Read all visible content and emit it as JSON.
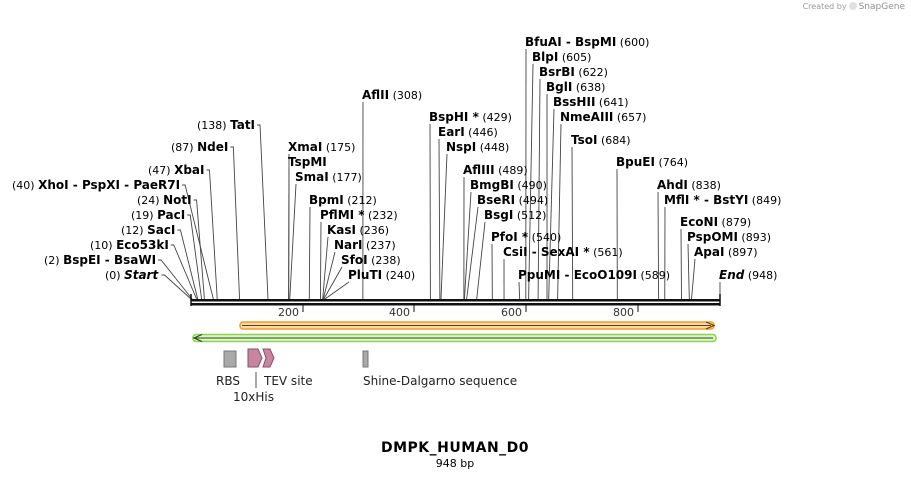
{
  "app": {
    "credit_prefix": "Created by",
    "credit_brand": "SnapGene"
  },
  "sequence": {
    "name": "DMPK_HUMAN_D0",
    "length_label": "948 bp",
    "length": 948
  },
  "colors": {
    "backbone": "#111111",
    "orange_feature": "#f0a020",
    "green_feature": "#8fd14f",
    "rbs": "#a9a9a9",
    "his": "#c7869f",
    "shine": "#a9a9a9"
  },
  "ticks": [
    "200",
    "400",
    "600",
    "800"
  ],
  "enzymes": [
    {
      "text": "(0)",
      "names": [
        "Start"
      ],
      "pos": "",
      "site": 0
    },
    {
      "text": "(2)",
      "names": [
        "BspEI",
        "BsaWI"
      ],
      "pos": "",
      "site": 2
    },
    {
      "text": "(10)",
      "names": [
        "Eco53kI"
      ],
      "pos": "",
      "site": 10
    },
    {
      "text": "(12)",
      "names": [
        "SacI"
      ],
      "pos": "",
      "site": 12
    },
    {
      "text": "(19)",
      "names": [
        "PacI"
      ],
      "pos": "",
      "site": 19
    },
    {
      "text": "(24)",
      "names": [
        "NotI"
      ],
      "pos": "",
      "site": 24
    },
    {
      "text": "(40)",
      "names": [
        "XhoI",
        "PspXI",
        "PaeR7I"
      ],
      "pos": "",
      "site": 40
    },
    {
      "text": "(47)",
      "names": [
        "XbaI"
      ],
      "pos": "",
      "site": 47
    },
    {
      "text": "(87)",
      "names": [
        "NdeI"
      ],
      "pos": "",
      "site": 87
    },
    {
      "text": "(138)",
      "names": [
        "TatI"
      ],
      "pos": "",
      "site": 138
    },
    {
      "text": "",
      "names": [
        "XmaI"
      ],
      "pos": "(175)",
      "site": 175
    },
    {
      "text": "",
      "names": [
        "TspMI"
      ],
      "pos": "",
      "site": 175
    },
    {
      "text": "",
      "names": [
        "SmaI"
      ],
      "pos": "(177)",
      "site": 177
    },
    {
      "text": "",
      "names": [
        "BpmI"
      ],
      "pos": "(212)",
      "site": 212
    },
    {
      "text": "",
      "names": [
        "PflMI *"
      ],
      "pos": "(232)",
      "site": 232
    },
    {
      "text": "",
      "names": [
        "KasI"
      ],
      "pos": "(236)",
      "site": 236
    },
    {
      "text": "",
      "names": [
        "NarI"
      ],
      "pos": "(237)",
      "site": 237
    },
    {
      "text": "",
      "names": [
        "SfoI"
      ],
      "pos": "(238)",
      "site": 238
    },
    {
      "text": "",
      "names": [
        "PluTI"
      ],
      "pos": "(240)",
      "site": 240
    },
    {
      "text": "",
      "names": [
        "AflII"
      ],
      "pos": "(308)",
      "site": 308
    },
    {
      "text": "",
      "names": [
        "BspHI *"
      ],
      "pos": "(429)",
      "site": 429
    },
    {
      "text": "",
      "names": [
        "EarI"
      ],
      "pos": "(446)",
      "site": 446
    },
    {
      "text": "",
      "names": [
        "NspI"
      ],
      "pos": "(448)",
      "site": 448
    },
    {
      "text": "",
      "names": [
        "AflIII"
      ],
      "pos": "(489)",
      "site": 489
    },
    {
      "text": "",
      "names": [
        "BmgBI"
      ],
      "pos": "(490)",
      "site": 490
    },
    {
      "text": "",
      "names": [
        "BseRI"
      ],
      "pos": "(494)",
      "site": 494
    },
    {
      "text": "",
      "names": [
        "BsgI"
      ],
      "pos": "(512)",
      "site": 512
    },
    {
      "text": "",
      "names": [
        "PfoI *"
      ],
      "pos": "(540)",
      "site": 540
    },
    {
      "text": "",
      "names": [
        "CsiI",
        "SexAI *"
      ],
      "pos": "(561)",
      "site": 561
    },
    {
      "text": "",
      "names": [
        "PpuMI",
        "EcoO109I"
      ],
      "pos": "(589)",
      "site": 589
    },
    {
      "text": "",
      "names": [
        "BfuAI",
        "BspMI"
      ],
      "pos": "(600)",
      "site": 600
    },
    {
      "text": "",
      "names": [
        "BlpI"
      ],
      "pos": "(605)",
      "site": 605
    },
    {
      "text": "",
      "names": [
        "BsrBI"
      ],
      "pos": "(622)",
      "site": 622
    },
    {
      "text": "",
      "names": [
        "BglI"
      ],
      "pos": "(638)",
      "site": 638
    },
    {
      "text": "",
      "names": [
        "BssHII"
      ],
      "pos": "(641)",
      "site": 641
    },
    {
      "text": "",
      "names": [
        "NmeAIII"
      ],
      "pos": "(657)",
      "site": 657
    },
    {
      "text": "",
      "names": [
        "TsoI"
      ],
      "pos": "(684)",
      "site": 684
    },
    {
      "text": "",
      "names": [
        "BpuEI"
      ],
      "pos": "(764)",
      "site": 764
    },
    {
      "text": "",
      "names": [
        "AhdI"
      ],
      "pos": "(838)",
      "site": 838
    },
    {
      "text": "",
      "names": [
        "MflI *",
        "BstYI"
      ],
      "pos": "(849)",
      "site": 849
    },
    {
      "text": "",
      "names": [
        "EcoNI"
      ],
      "pos": "(879)",
      "site": 879
    },
    {
      "text": "",
      "names": [
        "PspOMI"
      ],
      "pos": "(893)",
      "site": 893
    },
    {
      "text": "",
      "names": [
        "ApaI"
      ],
      "pos": "(897)",
      "site": 897
    },
    {
      "text": "",
      "names": [
        "End"
      ],
      "pos": "(948)",
      "site": 948
    }
  ],
  "features": [
    {
      "label": "RBS",
      "start": 55,
      "end": 80
    },
    {
      "label": "10xHis",
      "start": 98,
      "end": 128
    },
    {
      "label": "TEV site",
      "start": 130,
      "end": 150
    },
    {
      "label": "Shine-Dalgarno sequence",
      "start": 307,
      "end": 318
    }
  ],
  "bars": [
    {
      "name": "orange-feature",
      "start": 87,
      "end": 948
    },
    {
      "name": "green-feature",
      "start": 0,
      "end": 948
    }
  ]
}
